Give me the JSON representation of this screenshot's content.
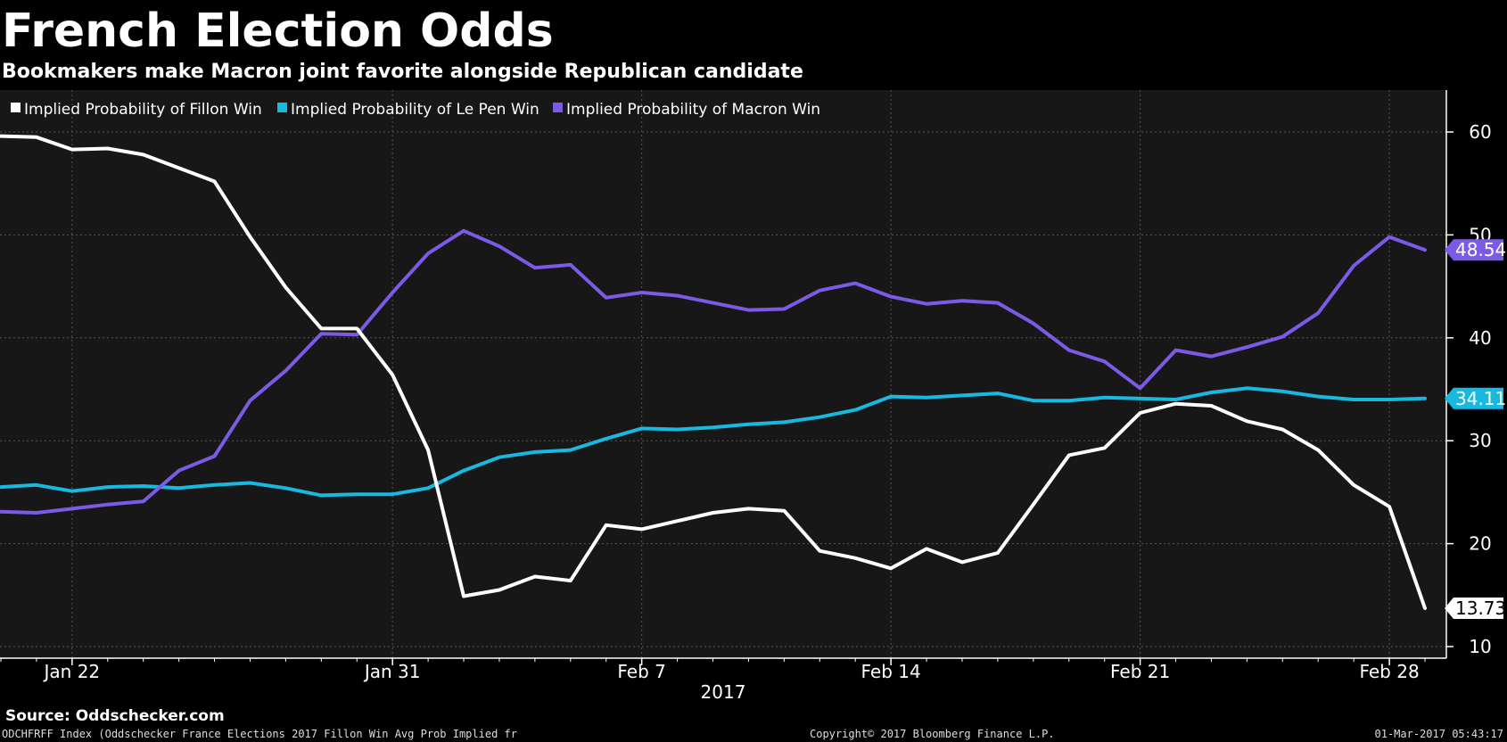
{
  "header": {
    "title": "French Election Odds",
    "subtitle": "Bookmakers make Macron joint favorite alongside Republican candidate"
  },
  "footer": {
    "source": "Source: Oddschecker.com",
    "index_description": "ODCHFRFF Index (Oddschecker France Elections 2017 Fillon Win Avg Prob Implied fr",
    "copyright": "Copyright© 2017 Bloomberg Finance L.P.",
    "timestamp": "01-Mar-2017 05:43:17"
  },
  "colors": {
    "background": "#000000",
    "plot_background": "#171717",
    "gridline": "#555555",
    "fillon": "#ffffff",
    "le_pen": "#19b8e0",
    "macron": "#7b5be6"
  },
  "chart_data": {
    "type": "line",
    "xlabel": "2017",
    "ylabel": "",
    "x_range": [
      "2017-01-20",
      "2017-03-01"
    ],
    "ylim": [
      10,
      62
    ],
    "y_ticks": [
      10,
      20,
      30,
      40,
      50,
      60
    ],
    "x_ticks": [
      {
        "date": "2017-01-22",
        "label": "Jan 22"
      },
      {
        "date": "2017-01-31",
        "label": "Jan 31"
      },
      {
        "date": "2017-02-07",
        "label": "Feb 7"
      },
      {
        "date": "2017-02-14",
        "label": "Feb 14"
      },
      {
        "date": "2017-02-21",
        "label": "Feb 21"
      },
      {
        "date": "2017-02-28",
        "label": "Feb 28"
      }
    ],
    "grid": true,
    "legend_position": "top-left",
    "x": [
      "2017-01-20",
      "2017-01-21",
      "2017-01-22",
      "2017-01-23",
      "2017-01-24",
      "2017-01-25",
      "2017-01-26",
      "2017-01-27",
      "2017-01-28",
      "2017-01-29",
      "2017-01-30",
      "2017-01-31",
      "2017-02-01",
      "2017-02-02",
      "2017-02-03",
      "2017-02-04",
      "2017-02-05",
      "2017-02-06",
      "2017-02-07",
      "2017-02-08",
      "2017-02-09",
      "2017-02-10",
      "2017-02-11",
      "2017-02-12",
      "2017-02-13",
      "2017-02-14",
      "2017-02-15",
      "2017-02-16",
      "2017-02-17",
      "2017-02-18",
      "2017-02-19",
      "2017-02-20",
      "2017-02-21",
      "2017-02-22",
      "2017-02-23",
      "2017-02-24",
      "2017-02-25",
      "2017-02-26",
      "2017-02-27",
      "2017-02-28",
      "2017-03-01"
    ],
    "series": [
      {
        "name": "Implied Probability of Fillon Win",
        "color": "#ffffff",
        "last_label": "13.73",
        "values": [
          59.6,
          59.5,
          58.3,
          58.4,
          57.8,
          56.5,
          55.2,
          49.8,
          44.9,
          40.9,
          40.9,
          36.4,
          29.1,
          14.9,
          15.5,
          16.8,
          16.4,
          21.8,
          21.4,
          22.2,
          23.0,
          23.4,
          23.2,
          19.3,
          18.6,
          17.6,
          19.5,
          18.2,
          19.1,
          23.8,
          28.6,
          29.3,
          32.7,
          33.6,
          33.4,
          31.9,
          31.1,
          29.1,
          25.7,
          23.6,
          13.73
        ]
      },
      {
        "name": "Implied Probability of Le Pen Win",
        "color": "#19b8e0",
        "last_label": "34.11",
        "values": [
          25.5,
          25.7,
          25.1,
          25.5,
          25.6,
          25.4,
          25.7,
          25.9,
          25.4,
          24.7,
          24.8,
          24.8,
          25.4,
          27.1,
          28.4,
          28.9,
          29.1,
          30.2,
          31.2,
          31.1,
          31.3,
          31.6,
          31.8,
          32.3,
          33.0,
          34.3,
          34.2,
          34.4,
          34.6,
          33.9,
          33.9,
          34.2,
          34.1,
          34.0,
          34.7,
          35.1,
          34.8,
          34.3,
          34.0,
          34.0,
          34.11
        ]
      },
      {
        "name": "Implied Probability of Macron Win",
        "color": "#7b5be6",
        "last_label": "48.54",
        "values": [
          23.1,
          23.0,
          23.4,
          23.8,
          24.1,
          27.1,
          28.5,
          33.9,
          36.8,
          40.4,
          40.3,
          44.4,
          48.2,
          50.4,
          48.9,
          46.8,
          47.1,
          43.9,
          44.4,
          44.1,
          43.4,
          42.7,
          42.8,
          44.6,
          45.3,
          44.0,
          43.3,
          43.6,
          43.4,
          41.4,
          38.8,
          37.7,
          35.1,
          38.8,
          38.2,
          39.1,
          40.1,
          42.4,
          47.0,
          49.8,
          48.54
        ]
      }
    ]
  }
}
